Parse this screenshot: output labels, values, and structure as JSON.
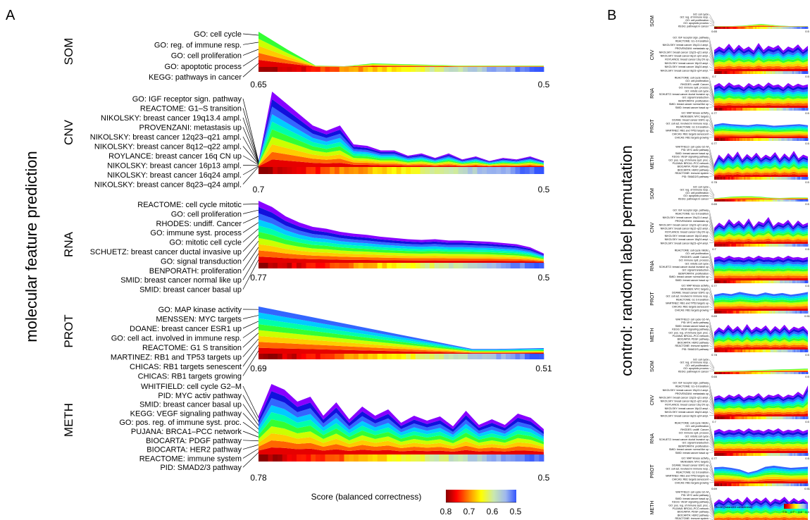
{
  "panel_a": {
    "letter": "A",
    "side_title": "molecular feature prediction"
  },
  "panel_b": {
    "letter": "B",
    "side_title": "control: random label permutation"
  },
  "legend": {
    "title": "Score (balanced correctness)",
    "ticks": [
      "0.8",
      "0.7",
      "0.6",
      "0.5"
    ],
    "small_title": "Score (balanced correctness)",
    "small_ticks": [
      "0.8",
      "0.7",
      "0.6",
      "0.5"
    ]
  },
  "colors": {
    "layers": [
      "#e60000",
      "#ff6600",
      "#ffcc00",
      "#ccff00",
      "#33ff33",
      "#00ffaa",
      "#00ccff",
      "#3366ff",
      "#1111dd",
      "#8800ff",
      "#cc33ff",
      "#ff22aa"
    ],
    "score_scale": [
      "#8b0000",
      "#ff0000",
      "#ff9900",
      "#ffff00",
      "#c9e8b0",
      "#9fb8ee",
      "#3355ff"
    ]
  },
  "chart_data": [
    {
      "type": "area",
      "modality": "SOM",
      "pathways": [
        "GO: cell cycle",
        "GO: reg. of immune resp.",
        "GO: cell proliferation",
        "GO: apoptotic process",
        "KEGG: pathways in cancer"
      ],
      "xlabel_left": "0.65",
      "xlabel_right": "0.5",
      "xlim": [
        0.65,
        0.5
      ],
      "totals": [
        50,
        25,
        2,
        1,
        5,
        4,
        3,
        2,
        2,
        2,
        2
      ],
      "ymax": 50
    },
    {
      "type": "area",
      "modality": "CNV",
      "pathways": [
        "GO: IGF receptor sign. pathway",
        "REACTOME: G1–S transition",
        "NIKOLSKY: breast cancer 19q13.4 ampl.",
        "PROVENZANI: metastasis up",
        "NIKOLSKY: breast cancer 12q23–q21 ampl.",
        "NIKOLSKY: breast cancer 8q12–q22 ampl.",
        "ROYLANCE: breast cancer 16q CN up",
        "NIKOLSKY: breast cancer 16p13 ampl.",
        "NIKOLSKY: breast cancer 16q24 ampl.",
        "NIKOLSKY: breast cancer 8q23–q24 ampl."
      ],
      "xlabel_left": "0.7",
      "xlabel_right": "0.5",
      "xlim": [
        0.7,
        0.5
      ],
      "totals": [
        8,
        100,
        85,
        70,
        55,
        48,
        55,
        30,
        28,
        22,
        22,
        15,
        18,
        12,
        18,
        10,
        14,
        8,
        12,
        10,
        14,
        8
      ],
      "ymax": 100
    },
    {
      "type": "area",
      "modality": "RNA",
      "pathways": [
        "REACTOME: cell cycle mitotic",
        "GO: cell proliferation",
        "RHODES: undiff. Cancer",
        "GO: immune syst. process",
        "GO: mitotic cell cycle",
        "SCHUETZ: breast cancer ductal invasive up",
        "GO: signal transduction",
        "BENPORATH: proliferation",
        "SMID: breast cancer normal like up",
        "SMID: breast cancer basal up"
      ],
      "xlabel_left": "0.77",
      "xlabel_right": "0.5",
      "xlim": [
        0.77,
        0.5
      ],
      "totals": [
        100,
        90,
        75,
        65,
        58,
        55,
        50,
        47,
        45,
        42,
        40,
        38,
        37,
        38,
        36,
        36,
        35,
        34,
        32,
        30,
        25,
        15
      ],
      "ymax": 100
    },
    {
      "type": "area",
      "modality": "PROT",
      "pathways": [
        "GO: MAP kinase activity",
        "MENSSEN: MYC targets",
        "DOANE: breast cancer ESR1 up",
        "GO: cell act. involved in immune resp.",
        "REACTOME: G1 S transition",
        "MARTINEZ: RB1 and TP53 targets up",
        "CHICAS: RB1 targets senescent",
        "CHICAS: RB1 targets growing"
      ],
      "xlabel_left": "0.69",
      "xlabel_right": "0.51",
      "xlim": [
        0.69,
        0.51
      ],
      "totals": [
        100,
        90,
        80,
        70,
        60,
        50,
        40,
        30,
        20,
        10,
        10,
        11,
        12
      ],
      "ymax": 100
    },
    {
      "type": "area",
      "modality": "METH",
      "pathways": [
        "WHITFIELD: cell cycle G2–M",
        "PID: MYC activ pathway",
        "SMID: breast cancer basal up",
        "KEGG: VEGF signaling pathway",
        "GO: pos. reg. of immune syst. proc.",
        "PUJANA: BRCA1–PCC network",
        "BIOCARTA: PDGF pathway",
        "BIOCARTA: HER2 pathway",
        "REACTOME: immune system",
        "PID: SMAD2/3 pathway"
      ],
      "xlabel_left": "0.78",
      "xlabel_right": "0.5",
      "xlim": [
        0.78,
        0.5
      ],
      "totals": [
        55,
        100,
        92,
        75,
        82,
        55,
        74,
        50,
        68,
        55,
        64,
        45,
        55,
        48,
        54,
        40,
        62,
        42,
        50,
        42,
        58,
        52,
        36
      ],
      "ymax": 100
    }
  ],
  "control_panels": [
    {
      "group": 1,
      "modalities": [
        {
          "name": "SOM",
          "left": "0.65",
          "right": "0.5",
          "totals": [
            5,
            5,
            5,
            8,
            14,
            20,
            14,
            8,
            5,
            5,
            5
          ]
        },
        {
          "name": "CNV",
          "left": "0.7",
          "right": "0.5",
          "totals": [
            60,
            70,
            62,
            78,
            60,
            75,
            62,
            70,
            58,
            80,
            60,
            72,
            66,
            74,
            58,
            70,
            64,
            76,
            60,
            72
          ]
        },
        {
          "name": "RNA",
          "left": "0.77",
          "right": "0.5",
          "totals": [
            70,
            78,
            66,
            80,
            70,
            74,
            64,
            78,
            68,
            76,
            66,
            80,
            70,
            74,
            64,
            78,
            68,
            76,
            70,
            74
          ]
        },
        {
          "name": "PROT",
          "left": "0.77",
          "right": "0.5",
          "totals": [
            50,
            56,
            52,
            50,
            48,
            52,
            50,
            46,
            48,
            50,
            52,
            48
          ]
        },
        {
          "name": "METH",
          "left": "0.78",
          "right": "0.5",
          "totals": [
            40,
            70,
            55,
            75,
            60,
            80,
            55,
            72,
            60,
            76,
            58,
            70,
            62,
            78,
            56,
            74,
            60,
            82,
            58,
            70,
            64
          ]
        }
      ]
    },
    {
      "group": 2,
      "modalities": [
        {
          "name": "SOM",
          "left": "0.65",
          "right": "0.5",
          "totals": [
            8,
            14,
            20,
            22,
            22,
            18,
            12,
            10,
            12,
            14,
            12
          ]
        },
        {
          "name": "CNV",
          "left": "0.7",
          "right": "0.5",
          "totals": [
            45,
            60,
            50,
            70,
            55,
            66,
            52,
            72,
            48,
            64,
            58,
            76,
            50,
            62,
            56,
            68,
            50,
            66,
            54,
            60
          ]
        },
        {
          "name": "RNA",
          "left": "0.77",
          "right": "0.5",
          "totals": [
            72,
            76,
            70,
            78,
            72,
            74,
            70,
            76,
            70,
            78,
            72,
            74,
            70,
            76,
            70,
            78,
            72,
            74,
            70,
            74
          ]
        },
        {
          "name": "PROT",
          "left": "0.69",
          "right": "0.51",
          "totals": [
            60,
            66,
            62,
            70,
            64,
            60,
            68,
            62,
            66,
            60,
            64,
            70
          ]
        },
        {
          "name": "METH",
          "left": "0.78",
          "right": "0.5",
          "totals": [
            55,
            70,
            60,
            78,
            62,
            74,
            58,
            80,
            60,
            72,
            64,
            76,
            58,
            74,
            62,
            78,
            60,
            72,
            66,
            74,
            58
          ]
        }
      ]
    },
    {
      "group": 3,
      "modalities": [
        {
          "name": "SOM",
          "left": "0.65",
          "right": "0.5",
          "totals": [
            4,
            6,
            8,
            10,
            12,
            14,
            16,
            18,
            20,
            22,
            24
          ]
        },
        {
          "name": "CNV",
          "left": "0.7",
          "right": "0.5",
          "totals": [
            55,
            60,
            52,
            62,
            56,
            64,
            52,
            60,
            56,
            66,
            52,
            62,
            58,
            64,
            54,
            62,
            58,
            70,
            60,
            88
          ]
        },
        {
          "name": "RNA",
          "left": "0.77",
          "right": "0.5",
          "totals": [
            70,
            76,
            68,
            74,
            70,
            76,
            68,
            78,
            70,
            74,
            68,
            76,
            70,
            78,
            68,
            74,
            70,
            76,
            68,
            74
          ]
        },
        {
          "name": "PROT",
          "left": "0.69",
          "right": "0.51",
          "totals": [
            60,
            62,
            58,
            52,
            40,
            48,
            62,
            66,
            62,
            58,
            60,
            62
          ]
        },
        {
          "name": "METH",
          "left": "0.78",
          "right": "0.5",
          "totals": [
            60,
            72,
            64,
            78,
            66,
            74,
            62,
            80,
            64,
            76,
            66,
            78,
            62,
            74,
            68,
            80,
            64,
            76,
            66,
            74,
            62
          ]
        }
      ]
    }
  ]
}
